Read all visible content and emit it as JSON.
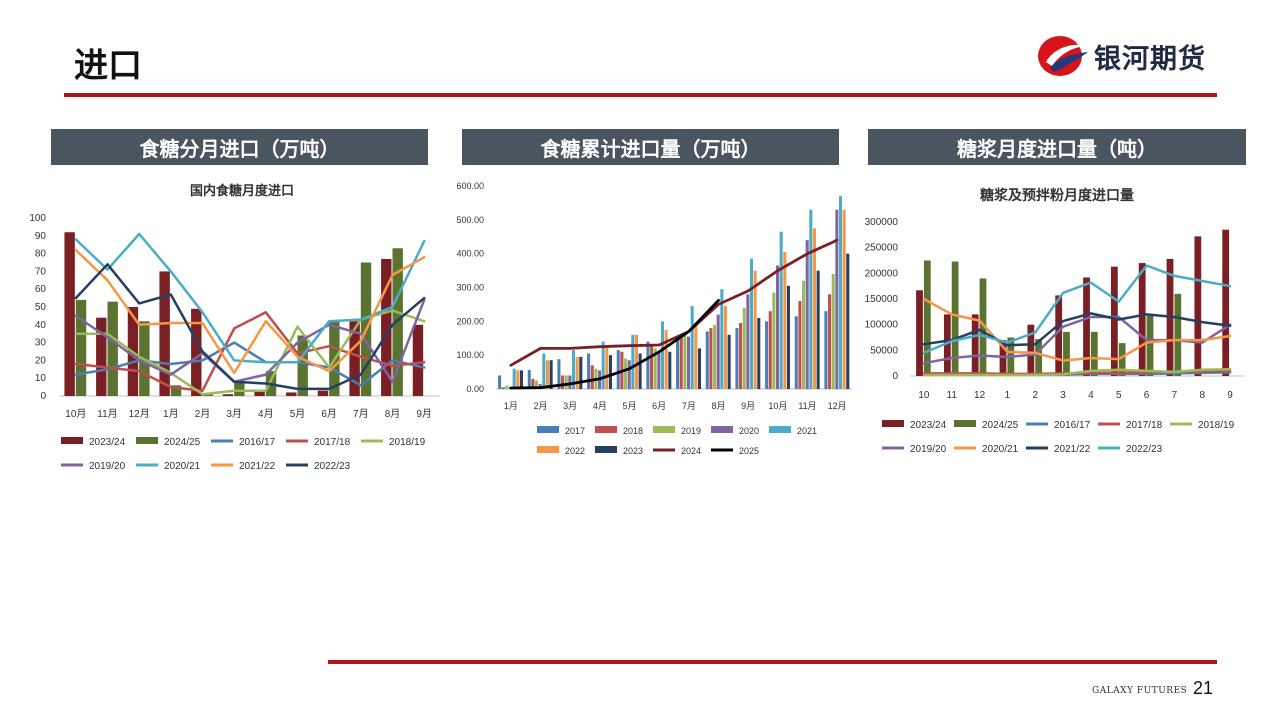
{
  "page": {
    "title": "进口",
    "number": "21",
    "footer_brand": "GALAXY FUTURES"
  },
  "logo": {
    "text": "银河期货"
  },
  "panels": [
    {
      "header": "食糖分月进口（万吨）"
    },
    {
      "header": "食糖累计进口量（万吨）"
    },
    {
      "header": "糖浆月度进口量（吨）"
    }
  ],
  "colors": {
    "accent_red": "#b0141c",
    "header_bg": "#4b5560"
  },
  "chart_data": [
    {
      "type": "bar",
      "title": "国内食糖月度进口",
      "categories": [
        "10月",
        "11月",
        "12月",
        "1月",
        "2月",
        "3月",
        "4月",
        "5月",
        "6月",
        "7月",
        "8月",
        "9月"
      ],
      "ylim": [
        0,
        100
      ],
      "yticks": [
        0,
        10,
        20,
        30,
        40,
        50,
        60,
        70,
        80,
        90,
        100
      ],
      "bar_series": [
        {
          "name": "2023/24",
          "color": "#7a1f24",
          "values": [
            92,
            44,
            50,
            70,
            49,
            1,
            3,
            2,
            3,
            42,
            77,
            40
          ]
        },
        {
          "name": "2024/25",
          "color": "#5a7330",
          "values": [
            54,
            53,
            42,
            6,
            1,
            8,
            14,
            34,
            42,
            75,
            83,
            null
          ]
        }
      ],
      "line_series": [
        {
          "name": "2016/17",
          "color": "#4a7eb5",
          "values": [
            12,
            15,
            20,
            18,
            20,
            30,
            19,
            19,
            16,
            6,
            20,
            16
          ]
        },
        {
          "name": "2017/18",
          "color": "#c0504d",
          "values": [
            18,
            16,
            14,
            5,
            3,
            38,
            47,
            24,
            28,
            22,
            17,
            19
          ]
        },
        {
          "name": "2018/19",
          "color": "#9bbb59",
          "values": [
            35,
            35,
            22,
            13,
            1,
            3,
            3,
            39,
            16,
            43,
            48,
            42
          ]
        },
        {
          "name": "2019/20",
          "color": "#8064a2",
          "values": [
            45,
            33,
            20,
            12,
            24,
            8,
            12,
            30,
            40,
            35,
            8,
            54
          ]
        },
        {
          "name": "2020/21",
          "color": "#4bacc6",
          "values": [
            88,
            71,
            91,
            70,
            47,
            20,
            19,
            19,
            42,
            43,
            50,
            87
          ]
        },
        {
          "name": "2021/22",
          "color": "#f79646",
          "values": [
            82,
            65,
            40,
            41,
            41,
            13,
            42,
            22,
            14,
            31,
            68,
            78
          ]
        },
        {
          "name": "2022/23",
          "color": "#243f60",
          "values": [
            55,
            74,
            52,
            57,
            25,
            8,
            7,
            4,
            4,
            12,
            40,
            55
          ]
        }
      ]
    },
    {
      "type": "bar",
      "title": "",
      "categories": [
        "1月",
        "2月",
        "3月",
        "4月",
        "5月",
        "6月",
        "7月",
        "8月",
        "9月",
        "10月",
        "11月",
        "12月"
      ],
      "ylim": [
        0,
        600
      ],
      "yticks": [
        "0.00",
        "100.00",
        "200.00",
        "300.00",
        "400.00",
        "500.00",
        "600.00"
      ],
      "bar_series": [
        {
          "name": "2017",
          "color": "#4a7eb5",
          "values": [
            40,
            56,
            88,
            105,
            115,
            140,
            155,
            170,
            180,
            200,
            215,
            230
          ]
        },
        {
          "name": "2018",
          "color": "#c0504d",
          "values": [
            5,
            30,
            40,
            70,
            110,
            130,
            160,
            180,
            195,
            230,
            260,
            280
          ]
        },
        {
          "name": "2019",
          "color": "#9bbb59",
          "values": [
            10,
            25,
            40,
            60,
            90,
            120,
            160,
            190,
            240,
            285,
            320,
            340
          ]
        },
        {
          "name": "2020",
          "color": "#8064a2",
          "values": [
            5,
            15,
            40,
            55,
            85,
            110,
            155,
            220,
            280,
            365,
            440,
            530
          ]
        },
        {
          "name": "2021",
          "color": "#4bacc6",
          "values": [
            60,
            105,
            115,
            140,
            160,
            200,
            245,
            295,
            385,
            465,
            530,
            570
          ]
        },
        {
          "name": "2022",
          "color": "#f79646",
          "values": [
            55,
            85,
            95,
            130,
            160,
            175,
            195,
            245,
            350,
            405,
            475,
            530
          ]
        },
        {
          "name": "2023",
          "color": "#243f60",
          "values": [
            55,
            85,
            95,
            100,
            105,
            110,
            120,
            160,
            210,
            305,
            350,
            400
          ]
        }
      ],
      "line_series": [
        {
          "name": "2024",
          "color": "#7a1f24",
          "values": [
            70,
            120,
            120,
            125,
            128,
            130,
            170,
            250,
            290,
            350,
            400,
            440
          ]
        },
        {
          "name": "2025",
          "color": "#000000",
          "values": [
            3,
            4,
            15,
            30,
            60,
            110,
            170,
            262,
            null,
            null,
            null,
            null
          ]
        }
      ]
    },
    {
      "type": "bar",
      "title": "糖浆及预拌粉月度进口量",
      "categories": [
        "10",
        "11",
        "12",
        "1",
        "2",
        "3",
        "4",
        "5",
        "6",
        "7",
        "8",
        "9"
      ],
      "ylim": [
        0,
        300000
      ],
      "yticks": [
        "0",
        "50000",
        "100000",
        "150000",
        "200000",
        "250000",
        "300000"
      ],
      "bar_series": [
        {
          "name": "2023/24",
          "color": "#7a1f24",
          "values": [
            167000,
            120000,
            120000,
            70000,
            100000,
            157000,
            192000,
            213000,
            220000,
            228000,
            272000,
            285000
          ]
        },
        {
          "name": "2024/25",
          "color": "#5a7330",
          "values": [
            225000,
            223000,
            190000,
            75000,
            72000,
            86000,
            86000,
            64000,
            117000,
            160000,
            null,
            null
          ]
        }
      ],
      "line_series": [
        {
          "name": "2016/17",
          "color": "#4a7eb5",
          "values": [
            3000,
            3000,
            4000,
            3000,
            3000,
            3000,
            4000,
            4000,
            4000,
            5000,
            6000,
            7000
          ]
        },
        {
          "name": "2017/18",
          "color": "#c0504d",
          "values": [
            5000,
            5000,
            5000,
            4000,
            4000,
            5000,
            6000,
            6000,
            7000,
            8000,
            9000,
            10000
          ]
        },
        {
          "name": "2018/19",
          "color": "#9bbb59",
          "values": [
            2000,
            2000,
            2000,
            2000,
            2000,
            3000,
            10000,
            12000,
            10000,
            8000,
            12000,
            13000
          ]
        },
        {
          "name": "2019/20",
          "color": "#8064a2",
          "values": [
            25000,
            35000,
            40000,
            37000,
            42000,
            96000,
            115000,
            115000,
            70000,
            70000,
            65000,
            100000
          ]
        },
        {
          "name": "2020/21",
          "color": "#f79646",
          "values": [
            150000,
            120000,
            108000,
            47000,
            45000,
            30000,
            35000,
            33000,
            65000,
            70000,
            70000,
            78000
          ]
        },
        {
          "name": "2021/22",
          "color": "#243f60",
          "values": [
            62000,
            70000,
            90000,
            60000,
            62000,
            107000,
            122000,
            110000,
            120000,
            115000,
            105000,
            98000
          ]
        },
        {
          "name": "2022/23",
          "color": "#4bacc6",
          "values": [
            45000,
            68000,
            80000,
            65000,
            85000,
            162000,
            182000,
            145000,
            215000,
            195000,
            185000,
            175000
          ]
        }
      ]
    }
  ]
}
